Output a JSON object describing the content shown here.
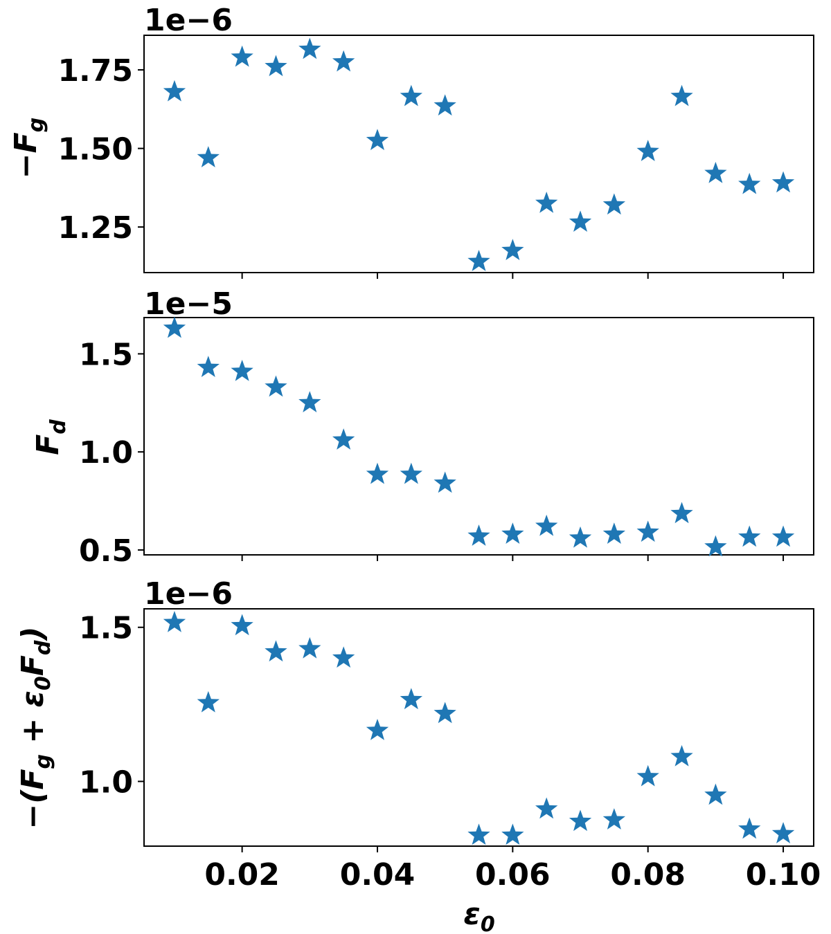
{
  "colors": {
    "marker": "#1f77b4",
    "axis": "#000000",
    "background": "#ffffff"
  },
  "chart_data": [
    {
      "type": "scatter",
      "marker": "star",
      "offset_label": "1e−6",
      "ylabel": {
        "main": "−F",
        "sub": "g"
      },
      "x": [
        0.01,
        0.015,
        0.02,
        0.025,
        0.03,
        0.035,
        0.04,
        0.045,
        0.05,
        0.055,
        0.06,
        0.065,
        0.07,
        0.075,
        0.08,
        0.085,
        0.09,
        0.095,
        0.1
      ],
      "y": [
        1.68,
        1.47,
        1.79,
        1.76,
        1.815,
        1.775,
        1.525,
        1.665,
        1.635,
        1.14,
        1.175,
        1.325,
        1.265,
        1.32,
        1.49,
        1.665,
        1.42,
        1.385,
        1.39
      ],
      "xlim": [
        0.0055,
        0.1045
      ],
      "ylim": [
        1.105,
        1.86
      ],
      "yticks": [
        1.25,
        1.5,
        1.75
      ],
      "ytick_labels": [
        "1.25",
        "1.50",
        "1.75"
      ],
      "xticks": [
        0.02,
        0.04,
        0.06,
        0.08,
        0.1
      ],
      "show_xtick_labels": false
    },
    {
      "type": "scatter",
      "marker": "star",
      "offset_label": "1e−5",
      "ylabel": {
        "main": "F",
        "sub": "d"
      },
      "x": [
        0.01,
        0.015,
        0.02,
        0.025,
        0.03,
        0.035,
        0.04,
        0.045,
        0.05,
        0.055,
        0.06,
        0.065,
        0.07,
        0.075,
        0.08,
        0.085,
        0.09,
        0.095,
        0.1
      ],
      "y": [
        1.63,
        1.43,
        1.41,
        1.33,
        1.25,
        1.06,
        0.885,
        0.885,
        0.84,
        0.57,
        0.58,
        0.62,
        0.56,
        0.58,
        0.59,
        0.685,
        0.515,
        0.565,
        0.565
      ],
      "xlim": [
        0.0055,
        0.1045
      ],
      "ylim": [
        0.475,
        1.685
      ],
      "yticks": [
        0.5,
        1.0,
        1.5
      ],
      "ytick_labels": [
        "0.5",
        "1.0",
        "1.5"
      ],
      "xticks": [
        0.02,
        0.04,
        0.06,
        0.08,
        0.1
      ],
      "show_xtick_labels": false
    },
    {
      "type": "scatter",
      "marker": "star",
      "offset_label": "1e−6",
      "ylabel": {
        "p1": "−(F",
        "s1": "g",
        "p2": " + ε",
        "s2": "0",
        "p3": "F",
        "s3": "d",
        "p4": ")"
      },
      "xlabel": {
        "main": "ε",
        "sub": "0"
      },
      "x": [
        0.01,
        0.015,
        0.02,
        0.025,
        0.03,
        0.035,
        0.04,
        0.045,
        0.05,
        0.055,
        0.06,
        0.065,
        0.07,
        0.075,
        0.08,
        0.085,
        0.09,
        0.095,
        0.1
      ],
      "y": [
        1.515,
        1.255,
        1.505,
        1.42,
        1.43,
        1.4,
        1.165,
        1.265,
        1.22,
        0.825,
        0.825,
        0.91,
        0.87,
        0.875,
        1.015,
        1.08,
        0.955,
        0.845,
        0.83
      ],
      "xlim": [
        0.0055,
        0.1045
      ],
      "ylim": [
        0.79,
        1.56
      ],
      "yticks": [
        1.0,
        1.5
      ],
      "ytick_labels": [
        "1.0",
        "1.5"
      ],
      "xticks": [
        0.02,
        0.04,
        0.06,
        0.08,
        0.1
      ],
      "xtick_labels": [
        "0.02",
        "0.04",
        "0.06",
        "0.08",
        "0.10"
      ],
      "show_xtick_labels": true
    }
  ]
}
